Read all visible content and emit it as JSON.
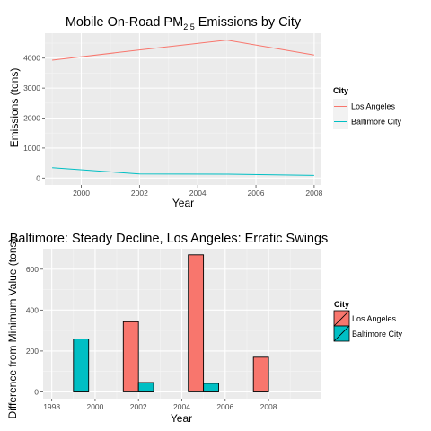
{
  "chart_data": [
    {
      "type": "line",
      "title_main": "Mobile On-Road PM",
      "title_sub": "2.5",
      "title_rest": " Emissions by City",
      "xlabel": "Year",
      "ylabel": "Emissions (tons)",
      "xlim": [
        1998.75,
        2008.25
      ],
      "ylim": [
        -230,
        4830
      ],
      "x_ticks": [
        2000,
        2002,
        2004,
        2006,
        2008
      ],
      "y_ticks": [
        0,
        1000,
        2000,
        3000,
        4000
      ],
      "x": [
        1999,
        2002,
        2005,
        2008
      ],
      "series": [
        {
          "name": "Los Angeles",
          "color": "#F8766D",
          "values": [
            3931,
            4274,
            4601,
            4101
          ]
        },
        {
          "name": "Baltimore City",
          "color": "#00BFC4",
          "values": [
            347,
            134,
            130,
            88
          ]
        }
      ],
      "legend": {
        "title": "City",
        "position": "right"
      },
      "grid": true
    },
    {
      "type": "bar",
      "title": "Baltimore: Steady Decline, Los Angeles: Erratic Swings",
      "xlabel": "Year",
      "ylabel": "Difference from Minimum Value (tons)",
      "xlim": [
        1997.6,
        2010.4
      ],
      "ylim": [
        -33,
        700
      ],
      "x_ticks": [
        1998,
        2000,
        2002,
        2004,
        2006,
        2008
      ],
      "y_ticks": [
        0,
        200,
        400,
        600
      ],
      "x": [
        1999,
        2002,
        2005,
        2008
      ],
      "bar_width": 1.4,
      "series": [
        {
          "name": "Los Angeles",
          "color": "#F8766D",
          "values": [
            0,
            343,
            670,
            170
          ]
        },
        {
          "name": "Baltimore City",
          "color": "#00BFC4",
          "values": [
            259,
            46,
            42,
            0
          ]
        }
      ],
      "legend": {
        "title": "City",
        "position": "right"
      },
      "grid": true
    }
  ]
}
